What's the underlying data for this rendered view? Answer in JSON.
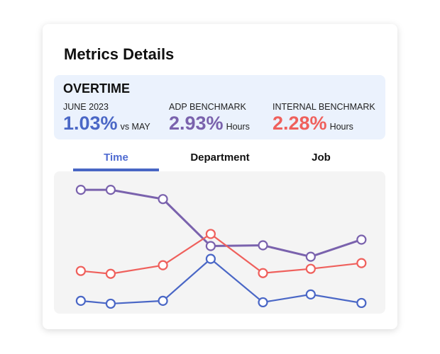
{
  "card": {
    "title": "Metrics Details"
  },
  "summary": {
    "heading": "OVERTIME",
    "metrics": [
      {
        "label": "JUNE 2023",
        "value": "1.03%",
        "unit": "vs MAY",
        "color": "#4a67c6"
      },
      {
        "label": "ADP BENCHMARK",
        "value": "2.93%",
        "unit": "Hours",
        "color": "#7a62ad"
      },
      {
        "label": "INTERNAL BENCHMARK",
        "value": "2.28%",
        "unit": "Hours",
        "color": "#ef605c"
      }
    ]
  },
  "tabs": [
    {
      "label": "Time",
      "active": true
    },
    {
      "label": "Department",
      "active": false
    },
    {
      "label": "Job",
      "active": false
    }
  ],
  "chart_data": {
    "type": "line",
    "x": [
      0,
      1,
      2.75,
      4.35,
      6.1,
      7.7,
      9.4
    ],
    "xlim": [
      -0.9,
      10.2
    ],
    "ylim": [
      -1,
      99
    ],
    "grid": false,
    "series": [
      {
        "name": "ADP Benchmark",
        "color": "#7a62ad",
        "values": [
          86,
          86,
          79.5,
          46.5,
          47,
          39,
          51
        ]
      },
      {
        "name": "Internal Benchmark",
        "color": "#ef605c",
        "values": [
          29,
          27,
          33,
          55,
          27.5,
          30.5,
          34.5
        ]
      },
      {
        "name": "Time",
        "color": "#4a67c6",
        "values": [
          8,
          6,
          8,
          37.5,
          7,
          12.5,
          6.5
        ]
      }
    ]
  }
}
